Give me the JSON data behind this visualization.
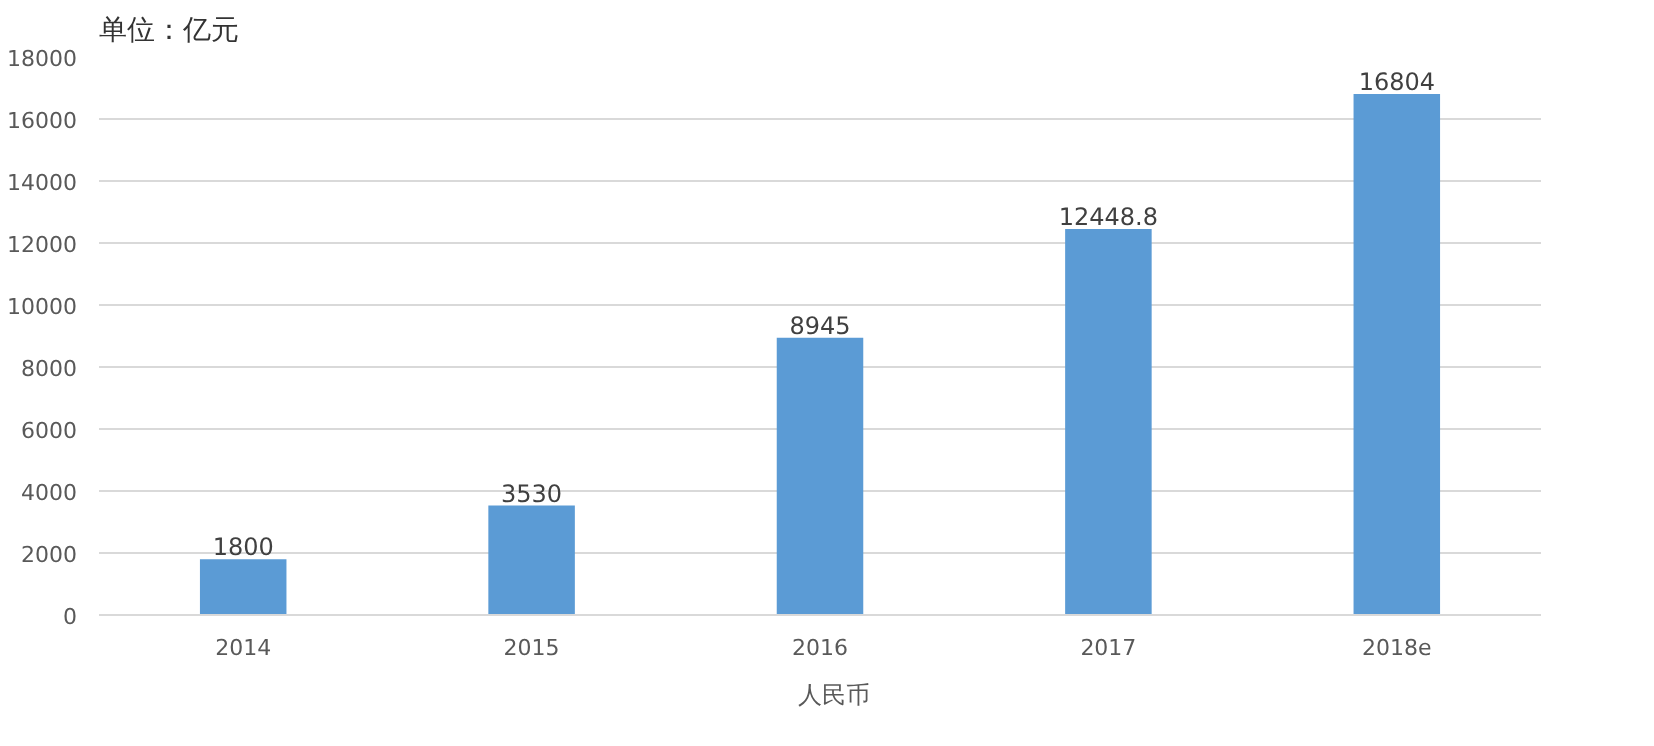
{
  "chart_data": {
    "type": "bar",
    "title": "单位：亿元",
    "categories": [
      "2014",
      "2015",
      "2016",
      "2017",
      "2018e"
    ],
    "series": [
      {
        "name": "人民币",
        "color": "#5b9bd5",
        "values": [
          1800,
          3530,
          8945,
          12448.8,
          16804
        ]
      }
    ],
    "ylim": [
      0,
      18000
    ],
    "yticks": [
      0,
      2000,
      4000,
      6000,
      8000,
      10000,
      12000,
      14000,
      16000,
      18000
    ],
    "grid": "y",
    "legend": "bottom",
    "data_labels": true
  }
}
